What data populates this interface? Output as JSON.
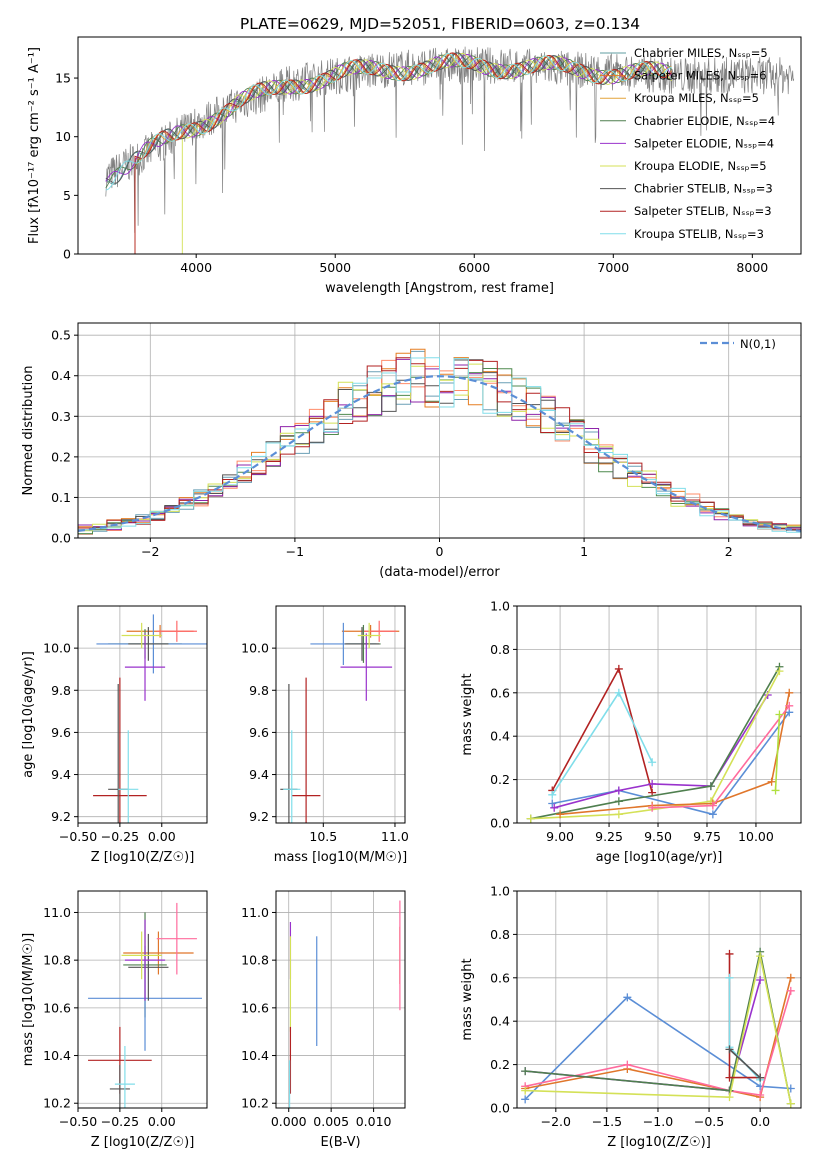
{
  "figure_title": "PLATE=0629, MJD=52051, FIBERID=0603, z=0.134",
  "series_colors": [
    "#6a9fb5",
    "#e67e22",
    "#ff8c69",
    "#4f8a4f",
    "#8e24aa",
    "#d4e157",
    "#555555",
    "#b22222",
    "#80deea"
  ],
  "chart_data": [
    {
      "id": "spectrum",
      "type": "line",
      "title": "PLATE=0629, MJD=52051, FIBERID=0603, z=0.134",
      "xlabel": "wavelength [Angstrom, rest frame]",
      "ylabel": "Flux [fλ10⁻¹⁷ erg cm⁻² s⁻¹ A⁻¹]",
      "xlim": [
        3150,
        8350
      ],
      "ylim": [
        0,
        18.5
      ],
      "xticks": [
        "4000",
        "5000",
        "6000",
        "7000",
        "8000"
      ],
      "yticks": [
        "0",
        "5",
        "10",
        "15"
      ],
      "grid": false,
      "legend_position": "right",
      "legend": [
        {
          "label": "Chabrier MILES, N_SSP=5",
          "color": "#5f9ea0"
        },
        {
          "label": "Salpeter MILES, N_SSP=6",
          "color": "#e0762b"
        },
        {
          "label": "Kroupa MILES, N_SSP=5",
          "color": "#e3a43a"
        },
        {
          "label": "Chabrier ELODIE, N_SSP=4",
          "color": "#4f7f4f"
        },
        {
          "label": "Salpeter ELODIE, N_SSP=4",
          "color": "#9932cc"
        },
        {
          "label": "Kroupa ELODIE, N_SSP=5",
          "color": "#d4e157"
        },
        {
          "label": "Chabrier STELIB, N_SSP=3",
          "color": "#555555"
        },
        {
          "label": "Salpeter STELIB, N_SSP=3",
          "color": "#b22222"
        },
        {
          "label": "Kroupa STELIB, N_SSP=3",
          "color": "#80deea"
        }
      ],
      "envelope": {
        "x": [
          3350,
          3500,
          3700,
          3900,
          4100,
          4300,
          4500,
          4700,
          4900,
          5100,
          5400,
          5700,
          6000,
          6300,
          6600,
          7000,
          7300,
          7420
        ],
        "y": [
          6.5,
          7.6,
          9.0,
          10.4,
          11.6,
          12.8,
          13.7,
          14.6,
          15.0,
          15.4,
          15.8,
          16.0,
          16.1,
          16.0,
          15.8,
          15.5,
          15.3,
          15.2
        ]
      },
      "data_x_range": [
        3350,
        8300
      ]
    },
    {
      "id": "residual_histogram",
      "type": "line",
      "xlabel": "(data-model)/error",
      "ylabel": "Normed distribution",
      "xlim": [
        -2.5,
        2.5
      ],
      "ylim": [
        0,
        0.53
      ],
      "xticks": [
        "−2",
        "−1",
        "0",
        "1",
        "2"
      ],
      "yticks": [
        "0.0",
        "0.1",
        "0.2",
        "0.3",
        "0.4",
        "0.5"
      ],
      "grid": true,
      "legend": [
        {
          "label": "N(0,1)",
          "color": "#5b8ed6"
        }
      ],
      "legend_position": "top-right",
      "bin_width": 0.1
    },
    {
      "id": "age_vs_Z",
      "type": "scatter",
      "xlabel": "Z [log10(Z/Z☉)]",
      "ylabel": "age  [log10(age/yr)]",
      "xlim": [
        -0.5,
        0.27
      ],
      "ylim": [
        9.17,
        10.2
      ],
      "xticks": [
        "−0.50",
        "−0.25",
        "0.00"
      ],
      "yticks": [
        "9.2",
        "9.4",
        "9.6",
        "9.8",
        "10.0"
      ],
      "grid": true,
      "points": [
        {
          "x": -0.01,
          "y": 10.08,
          "xerr": 0.2,
          "yerr": 0.03,
          "color": "#e0762b"
        },
        {
          "x": 0.09,
          "y": 10.08,
          "xerr": 0.12,
          "yerr": 0.05,
          "color": "#ff6b6b"
        },
        {
          "x": -0.1,
          "y": 10.02,
          "xerr": 0.22,
          "yerr": 0.07,
          "color": "#4f7f4f"
        },
        {
          "x": -0.05,
          "y": 10.02,
          "xerr": 0.34,
          "yerr": 0.14,
          "color": "#5b8ed6"
        },
        {
          "x": -0.08,
          "y": 10.02,
          "xerr": 0.12,
          "yerr": 0.08,
          "color": "#555555"
        },
        {
          "x": -0.1,
          "y": 9.91,
          "xerr": 0.12,
          "yerr": 0.16,
          "color": "#9932cc"
        },
        {
          "x": -0.25,
          "y": 9.3,
          "xerr": 0.16,
          "yerr": 0.56,
          "color": "#b22222"
        },
        {
          "x": -0.26,
          "y": 9.33,
          "xerr": 0.06,
          "yerr": 0.5,
          "color": "#555555"
        },
        {
          "x": -0.2,
          "y": 9.33,
          "xerr": 0.06,
          "yerr": 0.28,
          "color": "#80deea"
        },
        {
          "x": -0.12,
          "y": 10.06,
          "xerr": 0.12,
          "yerr": 0.06,
          "color": "#d4e157"
        }
      ]
    },
    {
      "id": "age_vs_mass",
      "type": "scatter",
      "xlabel": "mass [log10(M/M☉)]",
      "ylabel": "",
      "xlim": [
        10.17,
        11.07
      ],
      "ylim": [
        9.17,
        10.2
      ],
      "xticks": [
        "10.5",
        "11.0"
      ],
      "yticks": [
        "9.2",
        "9.4",
        "9.6",
        "9.8",
        "10.0"
      ],
      "grid": true,
      "points": [
        {
          "x": 10.83,
          "y": 10.08,
          "xerr": 0.2,
          "yerr": 0.03,
          "color": "#e0762b"
        },
        {
          "x": 10.89,
          "y": 10.08,
          "xerr": 0.12,
          "yerr": 0.05,
          "color": "#ff6b6b"
        },
        {
          "x": 10.78,
          "y": 10.02,
          "xerr": 0.12,
          "yerr": 0.09,
          "color": "#4f7f4f"
        },
        {
          "x": 10.64,
          "y": 10.02,
          "xerr": 0.23,
          "yerr": 0.1,
          "color": "#5b8ed6"
        },
        {
          "x": 10.77,
          "y": 10.02,
          "xerr": 0.12,
          "yerr": 0.08,
          "color": "#555555"
        },
        {
          "x": 10.8,
          "y": 9.91,
          "xerr": 0.18,
          "yerr": 0.16,
          "color": "#9932cc"
        },
        {
          "x": 10.38,
          "y": 9.3,
          "xerr": 0.1,
          "yerr": 0.56,
          "color": "#b22222"
        },
        {
          "x": 10.26,
          "y": 9.33,
          "xerr": 0.06,
          "yerr": 0.5,
          "color": "#555555"
        },
        {
          "x": 10.28,
          "y": 9.33,
          "xerr": 0.06,
          "yerr": 0.28,
          "color": "#80deea"
        },
        {
          "x": 10.82,
          "y": 10.06,
          "xerr": 0.08,
          "yerr": 0.06,
          "color": "#d4e157"
        }
      ]
    },
    {
      "id": "massweight_vs_age",
      "type": "line",
      "xlabel": "age  [log10(age/yr)]",
      "ylabel": "mass weight",
      "xlim": [
        8.78,
        10.23
      ],
      "ylim": [
        0,
        1
      ],
      "xticks": [
        "9.00",
        "9.25",
        "9.50",
        "9.75",
        "10.00"
      ],
      "yticks": [
        "0.0",
        "0.2",
        "0.4",
        "0.6",
        "0.8",
        "1.0"
      ],
      "grid": true,
      "series": [
        {
          "color": "#b22222",
          "x": [
            8.96,
            9.3,
            9.47
          ],
          "y": [
            0.15,
            0.71,
            0.14
          ]
        },
        {
          "color": "#80deea",
          "x": [
            8.96,
            9.3,
            9.47
          ],
          "y": [
            0.13,
            0.6,
            0.28
          ]
        },
        {
          "color": "#5b8ed6",
          "x": [
            8.96,
            9.3,
            9.78,
            10.17
          ],
          "y": [
            0.09,
            0.15,
            0.04,
            0.51
          ]
        },
        {
          "color": "#9932cc",
          "x": [
            8.97,
            9.3,
            9.47,
            9.77,
            10.06
          ],
          "y": [
            0.07,
            0.15,
            0.18,
            0.17,
            0.59
          ]
        },
        {
          "color": "#4f7f4f",
          "x": [
            8.85,
            9.3,
            9.77,
            10.12
          ],
          "y": [
            0.02,
            0.1,
            0.17,
            0.72
          ]
        },
        {
          "color": "#d4e157",
          "x": [
            8.85,
            9.3,
            9.77,
            10.12
          ],
          "y": [
            0.02,
            0.04,
            0.1,
            0.7
          ]
        },
        {
          "color": "#e0762b",
          "x": [
            9.0,
            9.47,
            9.78,
            10.08,
            10.17
          ],
          "y": [
            0.04,
            0.08,
            0.09,
            0.19,
            0.6
          ]
        },
        {
          "color": "#ff6b9d",
          "x": [
            9.47,
            9.78,
            10.17
          ],
          "y": [
            0.07,
            0.08,
            0.54
          ]
        },
        {
          "color": "#b0e040",
          "x": [
            10.1,
            10.12
          ],
          "y": [
            0.15,
            0.5
          ]
        }
      ]
    },
    {
      "id": "mass_vs_Z",
      "type": "scatter",
      "xlabel": "Z [log10(Z/Z☉)]",
      "ylabel": "mass [log10(M/M☉)]",
      "xlim": [
        -0.5,
        0.27
      ],
      "ylim": [
        10.18,
        11.09
      ],
      "xticks": [
        "−0.50",
        "−0.25",
        "0.00"
      ],
      "yticks": [
        "10.2",
        "10.4",
        "10.6",
        "10.8",
        "11.0"
      ],
      "grid": true,
      "points": [
        {
          "x": -0.02,
          "y": 10.83,
          "xerr": 0.21,
          "yerr": 0.09,
          "color": "#e0762b"
        },
        {
          "x": 0.09,
          "y": 10.89,
          "xerr": 0.12,
          "yerr": 0.15,
          "color": "#ff6b9d"
        },
        {
          "x": -0.1,
          "y": 10.78,
          "xerr": 0.13,
          "yerr": 0.22,
          "color": "#4f7f4f"
        },
        {
          "x": -0.1,
          "y": 10.64,
          "xerr": 0.34,
          "yerr": 0.22,
          "color": "#5b8ed6"
        },
        {
          "x": -0.08,
          "y": 10.77,
          "xerr": 0.12,
          "yerr": 0.14,
          "color": "#555555"
        },
        {
          "x": -0.1,
          "y": 10.8,
          "xerr": 0.12,
          "yerr": 0.17,
          "color": "#9932cc"
        },
        {
          "x": -0.25,
          "y": 10.38,
          "xerr": 0.19,
          "yerr": 0.14,
          "color": "#b22222"
        },
        {
          "x": -0.25,
          "y": 10.26,
          "xerr": 0.06,
          "yerr": 0.1,
          "color": "#555555"
        },
        {
          "x": -0.22,
          "y": 10.28,
          "xerr": 0.06,
          "yerr": 0.16,
          "color": "#80deea"
        },
        {
          "x": -0.12,
          "y": 10.82,
          "xerr": 0.12,
          "yerr": 0.1,
          "color": "#d4e157"
        }
      ]
    },
    {
      "id": "mass_vs_ebv",
      "type": "scatter",
      "xlabel": "E(B-V)",
      "ylabel": "",
      "xlim": [
        -0.0015,
        0.0137
      ],
      "ylim": [
        10.18,
        11.09
      ],
      "xticks": [
        "0.000",
        "0.005",
        "0.010"
      ],
      "yticks": [
        "10.2",
        "10.4",
        "10.6",
        "10.8",
        "11.0"
      ],
      "grid": true,
      "points": [
        {
          "x": 0.0131,
          "y": 10.82,
          "xerr": 0,
          "yerr": 0.12,
          "color": "#e0762b"
        },
        {
          "x": 0.0131,
          "y": 10.82,
          "xerr": 0,
          "yerr": 0.23,
          "color": "#ff6b9d"
        },
        {
          "x": 0.0033,
          "y": 10.67,
          "xerr": 0,
          "yerr": 0.23,
          "color": "#5b8ed6"
        },
        {
          "x": 0.0002,
          "y": 10.84,
          "xerr": 0,
          "yerr": 0.12,
          "color": "#9932cc"
        },
        {
          "x": 0.0002,
          "y": 10.7,
          "xerr": 0,
          "yerr": 0.2,
          "color": "#d4e157"
        },
        {
          "x": 0.0002,
          "y": 10.38,
          "xerr": 0,
          "yerr": 0.14,
          "color": "#b22222"
        },
        {
          "x": 0.0001,
          "y": 10.28,
          "xerr": 0,
          "yerr": 0.1,
          "color": "#80deea"
        }
      ]
    },
    {
      "id": "massweight_vs_Z",
      "type": "line",
      "xlabel": "Z [log10(Z/Z☉)]",
      "ylabel": "mass weight",
      "xlim": [
        -2.38,
        0.4
      ],
      "ylim": [
        0,
        1
      ],
      "xticks": [
        "−2.0",
        "−1.5",
        "−1.0",
        "−0.5",
        "0.0"
      ],
      "yticks": [
        "0.0",
        "0.2",
        "0.4",
        "0.6",
        "0.8",
        "1.0"
      ],
      "grid": true,
      "series": [
        {
          "color": "#5b8ed6",
          "x": [
            -2.3,
            -1.3,
            0.0,
            0.3
          ],
          "y": [
            0.04,
            0.51,
            0.1,
            0.09
          ]
        },
        {
          "color": "#e0762b",
          "x": [
            -2.3,
            -1.3,
            -0.3,
            0.0,
            0.3
          ],
          "y": [
            0.09,
            0.18,
            0.08,
            0.05,
            0.6
          ]
        },
        {
          "color": "#ff6b9d",
          "x": [
            -2.3,
            -1.3,
            -0.3,
            0.0,
            0.3
          ],
          "y": [
            0.1,
            0.2,
            0.08,
            0.06,
            0.54
          ]
        },
        {
          "color": "#9932cc",
          "x": [
            -2.3,
            -0.3,
            0.0
          ],
          "y": [
            0.17,
            0.08,
            0.59
          ]
        },
        {
          "color": "#4f7f4f",
          "x": [
            -2.3,
            -0.3,
            0.0,
            0.3
          ],
          "y": [
            0.17,
            0.08,
            0.72,
            0.02
          ]
        },
        {
          "color": "#d4e157",
          "x": [
            -2.3,
            -0.3,
            0.0,
            0.3
          ],
          "y": [
            0.08,
            0.05,
            0.7,
            0.02
          ]
        },
        {
          "color": "#b22222",
          "x": [
            -0.3,
            -0.3,
            0.0,
            0.0
          ],
          "y": [
            0.71,
            0.14,
            0.14,
            0.14
          ]
        },
        {
          "color": "#80deea",
          "x": [
            -0.3,
            -0.3,
            0.0
          ],
          "y": [
            0.6,
            0.28,
            0.13
          ]
        },
        {
          "color": "#555555",
          "x": [
            -0.3,
            0.0
          ],
          "y": [
            0.27,
            0.14
          ]
        }
      ]
    }
  ]
}
